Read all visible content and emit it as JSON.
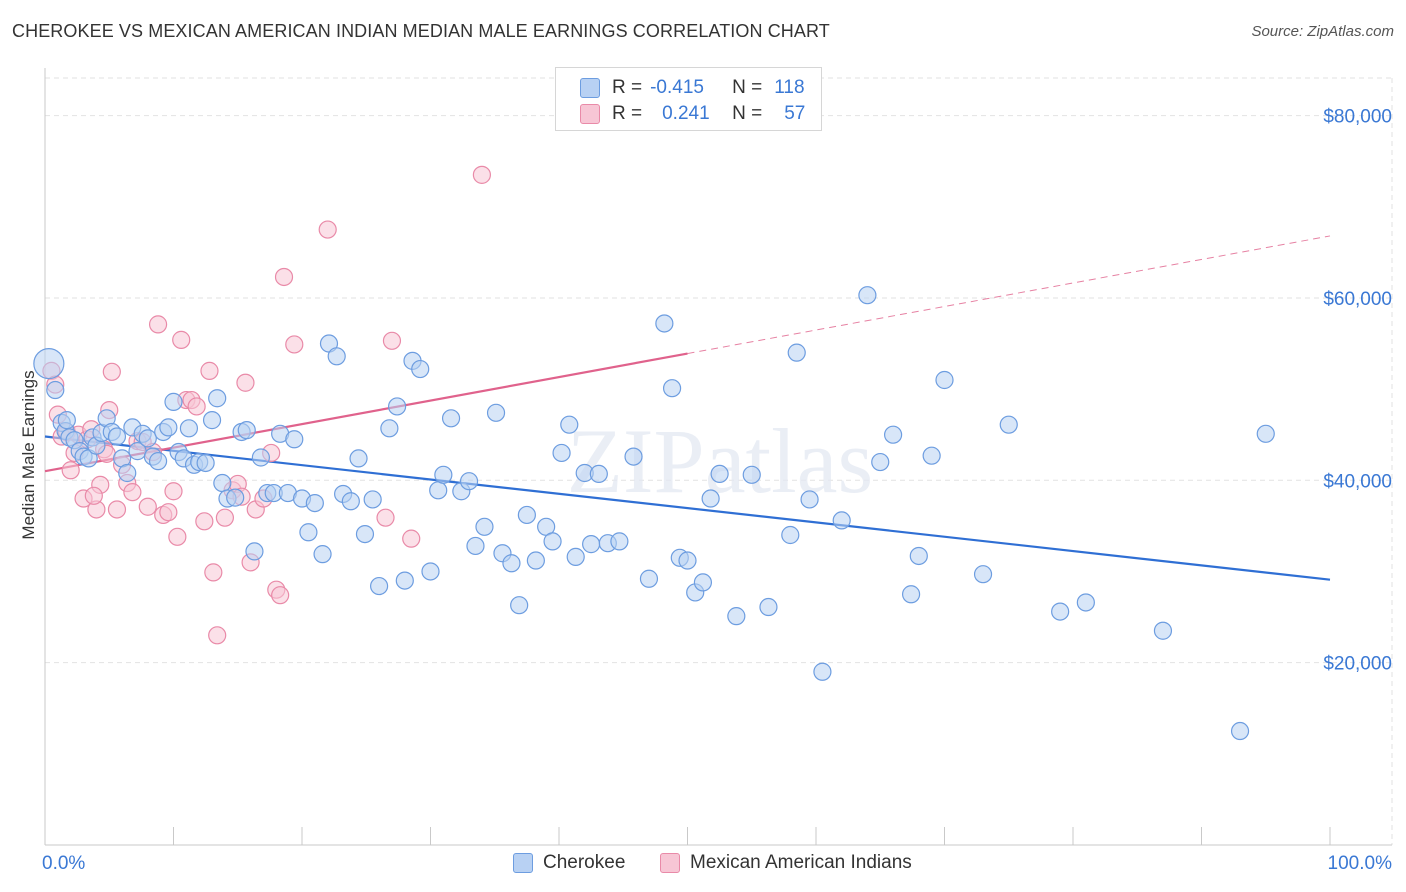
{
  "title": "CHEROKEE VS MEXICAN AMERICAN INDIAN MEDIAN MALE EARNINGS CORRELATION CHART",
  "source": "Source: ZipAtlas.com",
  "watermark": "ZIPatlas",
  "legend": {
    "rows": [
      {
        "r_label": "R =",
        "r_value": "-0.415",
        "n_label": "N =",
        "n_value": "118"
      },
      {
        "r_label": "R =",
        "r_value": "0.241",
        "n_label": "N =",
        "n_value": "57"
      }
    ]
  },
  "bottom_legend": [
    "Cherokee",
    "Mexican American Indians"
  ],
  "colors": {
    "cherokee_fill": "#b8d1f3",
    "cherokee_stroke": "#6d9de0",
    "cherokee_line": "#2f6fd4",
    "mexican_fill": "#f7c6d5",
    "mexican_stroke": "#e98aa8",
    "mexican_line": "#e0628c",
    "tick_text": "#3a78d4",
    "grid": "#e2e2e2"
  },
  "chart_data": {
    "type": "scatter",
    "title": "CHEROKEE VS MEXICAN AMERICAN INDIAN MEDIAN MALE EARNINGS CORRELATION CHART",
    "xlabel": "",
    "ylabel": "Median Male Earnings",
    "xlim": [
      0,
      100
    ],
    "ylim": [
      0,
      85000
    ],
    "x_tick_labels": [
      "0.0%",
      "100.0%"
    ],
    "y_ticks": [
      20000,
      40000,
      60000,
      80000
    ],
    "y_tick_labels": [
      "$20,000",
      "$40,000",
      "$60,000",
      "$80,000"
    ],
    "grid": true,
    "legend_position": "top-center",
    "series": [
      {
        "name": "Cherokee",
        "R": -0.415,
        "N": 118,
        "trend": {
          "x": [
            0,
            100
          ],
          "y": [
            44800,
            29100
          ]
        },
        "points": [
          [
            0.3,
            52800
          ],
          [
            0.8,
            49900
          ],
          [
            1.3,
            46300
          ],
          [
            1.6,
            45400
          ],
          [
            1.9,
            44700
          ],
          [
            2.3,
            44400
          ],
          [
            2.7,
            43200
          ],
          [
            3.0,
            42600
          ],
          [
            3.4,
            42400
          ],
          [
            3.7,
            44700
          ],
          [
            4.0,
            43800
          ],
          [
            4.4,
            45200
          ],
          [
            4.8,
            46800
          ],
          [
            5.2,
            45300
          ],
          [
            5.6,
            44800
          ],
          [
            6.0,
            42400
          ],
          [
            6.4,
            40800
          ],
          [
            6.8,
            45800
          ],
          [
            7.2,
            43200
          ],
          [
            7.6,
            45100
          ],
          [
            8.0,
            44600
          ],
          [
            8.4,
            42600
          ],
          [
            8.8,
            42100
          ],
          [
            9.2,
            45300
          ],
          [
            9.6,
            45800
          ],
          [
            10.0,
            48600
          ],
          [
            10.4,
            43100
          ],
          [
            10.8,
            42400
          ],
          [
            11.2,
            45700
          ],
          [
            11.6,
            41700
          ],
          [
            12.0,
            42000
          ],
          [
            12.5,
            41900
          ],
          [
            13.0,
            46600
          ],
          [
            13.4,
            49000
          ],
          [
            13.8,
            39700
          ],
          [
            14.2,
            38000
          ],
          [
            14.8,
            38100
          ],
          [
            15.3,
            45300
          ],
          [
            15.7,
            45500
          ],
          [
            16.3,
            32200
          ],
          [
            16.8,
            42500
          ],
          [
            17.3,
            38600
          ],
          [
            17.8,
            38600
          ],
          [
            18.3,
            45100
          ],
          [
            18.9,
            38600
          ],
          [
            19.4,
            44500
          ],
          [
            20.0,
            38000
          ],
          [
            20.5,
            34300
          ],
          [
            21.0,
            37500
          ],
          [
            21.6,
            31900
          ],
          [
            22.1,
            55000
          ],
          [
            22.7,
            53600
          ],
          [
            23.2,
            38500
          ],
          [
            23.8,
            37700
          ],
          [
            24.4,
            42400
          ],
          [
            24.9,
            34100
          ],
          [
            25.5,
            37900
          ],
          [
            26.0,
            28400
          ],
          [
            26.8,
            45700
          ],
          [
            27.4,
            48100
          ],
          [
            28.0,
            29000
          ],
          [
            28.6,
            53100
          ],
          [
            29.2,
            52200
          ],
          [
            30.0,
            30000
          ],
          [
            30.6,
            38900
          ],
          [
            31.0,
            40600
          ],
          [
            31.6,
            46800
          ],
          [
            32.4,
            38800
          ],
          [
            33.0,
            39900
          ],
          [
            33.5,
            32800
          ],
          [
            34.2,
            34900
          ],
          [
            35.1,
            47400
          ],
          [
            35.6,
            32000
          ],
          [
            36.3,
            30900
          ],
          [
            36.9,
            26300
          ],
          [
            37.5,
            36200
          ],
          [
            38.2,
            31200
          ],
          [
            39.0,
            34900
          ],
          [
            39.5,
            33300
          ],
          [
            40.2,
            43000
          ],
          [
            40.8,
            46100
          ],
          [
            41.3,
            31600
          ],
          [
            42.0,
            40800
          ],
          [
            42.5,
            33000
          ],
          [
            43.1,
            40700
          ],
          [
            43.8,
            33100
          ],
          [
            44.7,
            33300
          ],
          [
            45.8,
            42600
          ],
          [
            47.0,
            29200
          ],
          [
            48.2,
            57200
          ],
          [
            48.8,
            50100
          ],
          [
            49.4,
            31500
          ],
          [
            50.0,
            31200
          ],
          [
            50.6,
            27700
          ],
          [
            51.2,
            28800
          ],
          [
            51.8,
            38000
          ],
          [
            52.5,
            40700
          ],
          [
            53.8,
            25100
          ],
          [
            55.0,
            40600
          ],
          [
            56.3,
            26100
          ],
          [
            58.0,
            34000
          ],
          [
            58.5,
            54000
          ],
          [
            59.5,
            37900
          ],
          [
            60.5,
            19000
          ],
          [
            62.0,
            35600
          ],
          [
            64.0,
            60300
          ],
          [
            65.0,
            42000
          ],
          [
            66.0,
            45000
          ],
          [
            67.4,
            27500
          ],
          [
            68.0,
            31700
          ],
          [
            69.0,
            42700
          ],
          [
            70.0,
            51000
          ],
          [
            73.0,
            29700
          ],
          [
            75.0,
            46100
          ],
          [
            79.0,
            25600
          ],
          [
            81.0,
            26600
          ],
          [
            87.0,
            23500
          ],
          [
            93.0,
            12500
          ],
          [
            95.0,
            45100
          ],
          [
            1.7,
            46600
          ]
        ]
      },
      {
        "name": "Mexican American Indians",
        "R": 0.241,
        "N": 57,
        "trend": {
          "x": [
            0,
            50
          ],
          "y": [
            41000,
            53900
          ]
        },
        "trend_dashed": {
          "x": [
            50,
            100
          ],
          "y": [
            53900,
            66800
          ]
        },
        "points": [
          [
            0.5,
            52000
          ],
          [
            0.8,
            50500
          ],
          [
            1.0,
            47200
          ],
          [
            1.3,
            44800
          ],
          [
            1.7,
            45300
          ],
          [
            2.0,
            41100
          ],
          [
            2.3,
            43000
          ],
          [
            2.6,
            45000
          ],
          [
            3.0,
            38000
          ],
          [
            3.3,
            44500
          ],
          [
            3.6,
            45600
          ],
          [
            4.0,
            36800
          ],
          [
            4.3,
            39500
          ],
          [
            4.6,
            43400
          ],
          [
            5.0,
            47700
          ],
          [
            5.2,
            51900
          ],
          [
            5.6,
            36800
          ],
          [
            6.0,
            41700
          ],
          [
            6.4,
            39700
          ],
          [
            6.8,
            38700
          ],
          [
            7.2,
            44300
          ],
          [
            7.6,
            44200
          ],
          [
            8.0,
            37100
          ],
          [
            8.4,
            43100
          ],
          [
            8.8,
            57100
          ],
          [
            9.2,
            36200
          ],
          [
            9.6,
            36500
          ],
          [
            10.0,
            38800
          ],
          [
            10.3,
            33800
          ],
          [
            10.6,
            55400
          ],
          [
            11.0,
            48800
          ],
          [
            11.4,
            48800
          ],
          [
            11.8,
            48100
          ],
          [
            12.4,
            35500
          ],
          [
            12.8,
            52000
          ],
          [
            13.1,
            29900
          ],
          [
            13.4,
            23000
          ],
          [
            14.0,
            35900
          ],
          [
            14.6,
            38900
          ],
          [
            15.0,
            39600
          ],
          [
            15.3,
            38200
          ],
          [
            15.6,
            50700
          ],
          [
            16.0,
            31000
          ],
          [
            16.4,
            36800
          ],
          [
            17.0,
            38000
          ],
          [
            17.6,
            43000
          ],
          [
            18.0,
            28000
          ],
          [
            18.3,
            27400
          ],
          [
            18.6,
            62300
          ],
          [
            19.4,
            54900
          ],
          [
            22.0,
            67500
          ],
          [
            26.5,
            35900
          ],
          [
            27.0,
            55300
          ],
          [
            28.5,
            33600
          ],
          [
            34.0,
            73500
          ],
          [
            4.8,
            42900
          ],
          [
            3.8,
            38300
          ]
        ]
      }
    ]
  }
}
